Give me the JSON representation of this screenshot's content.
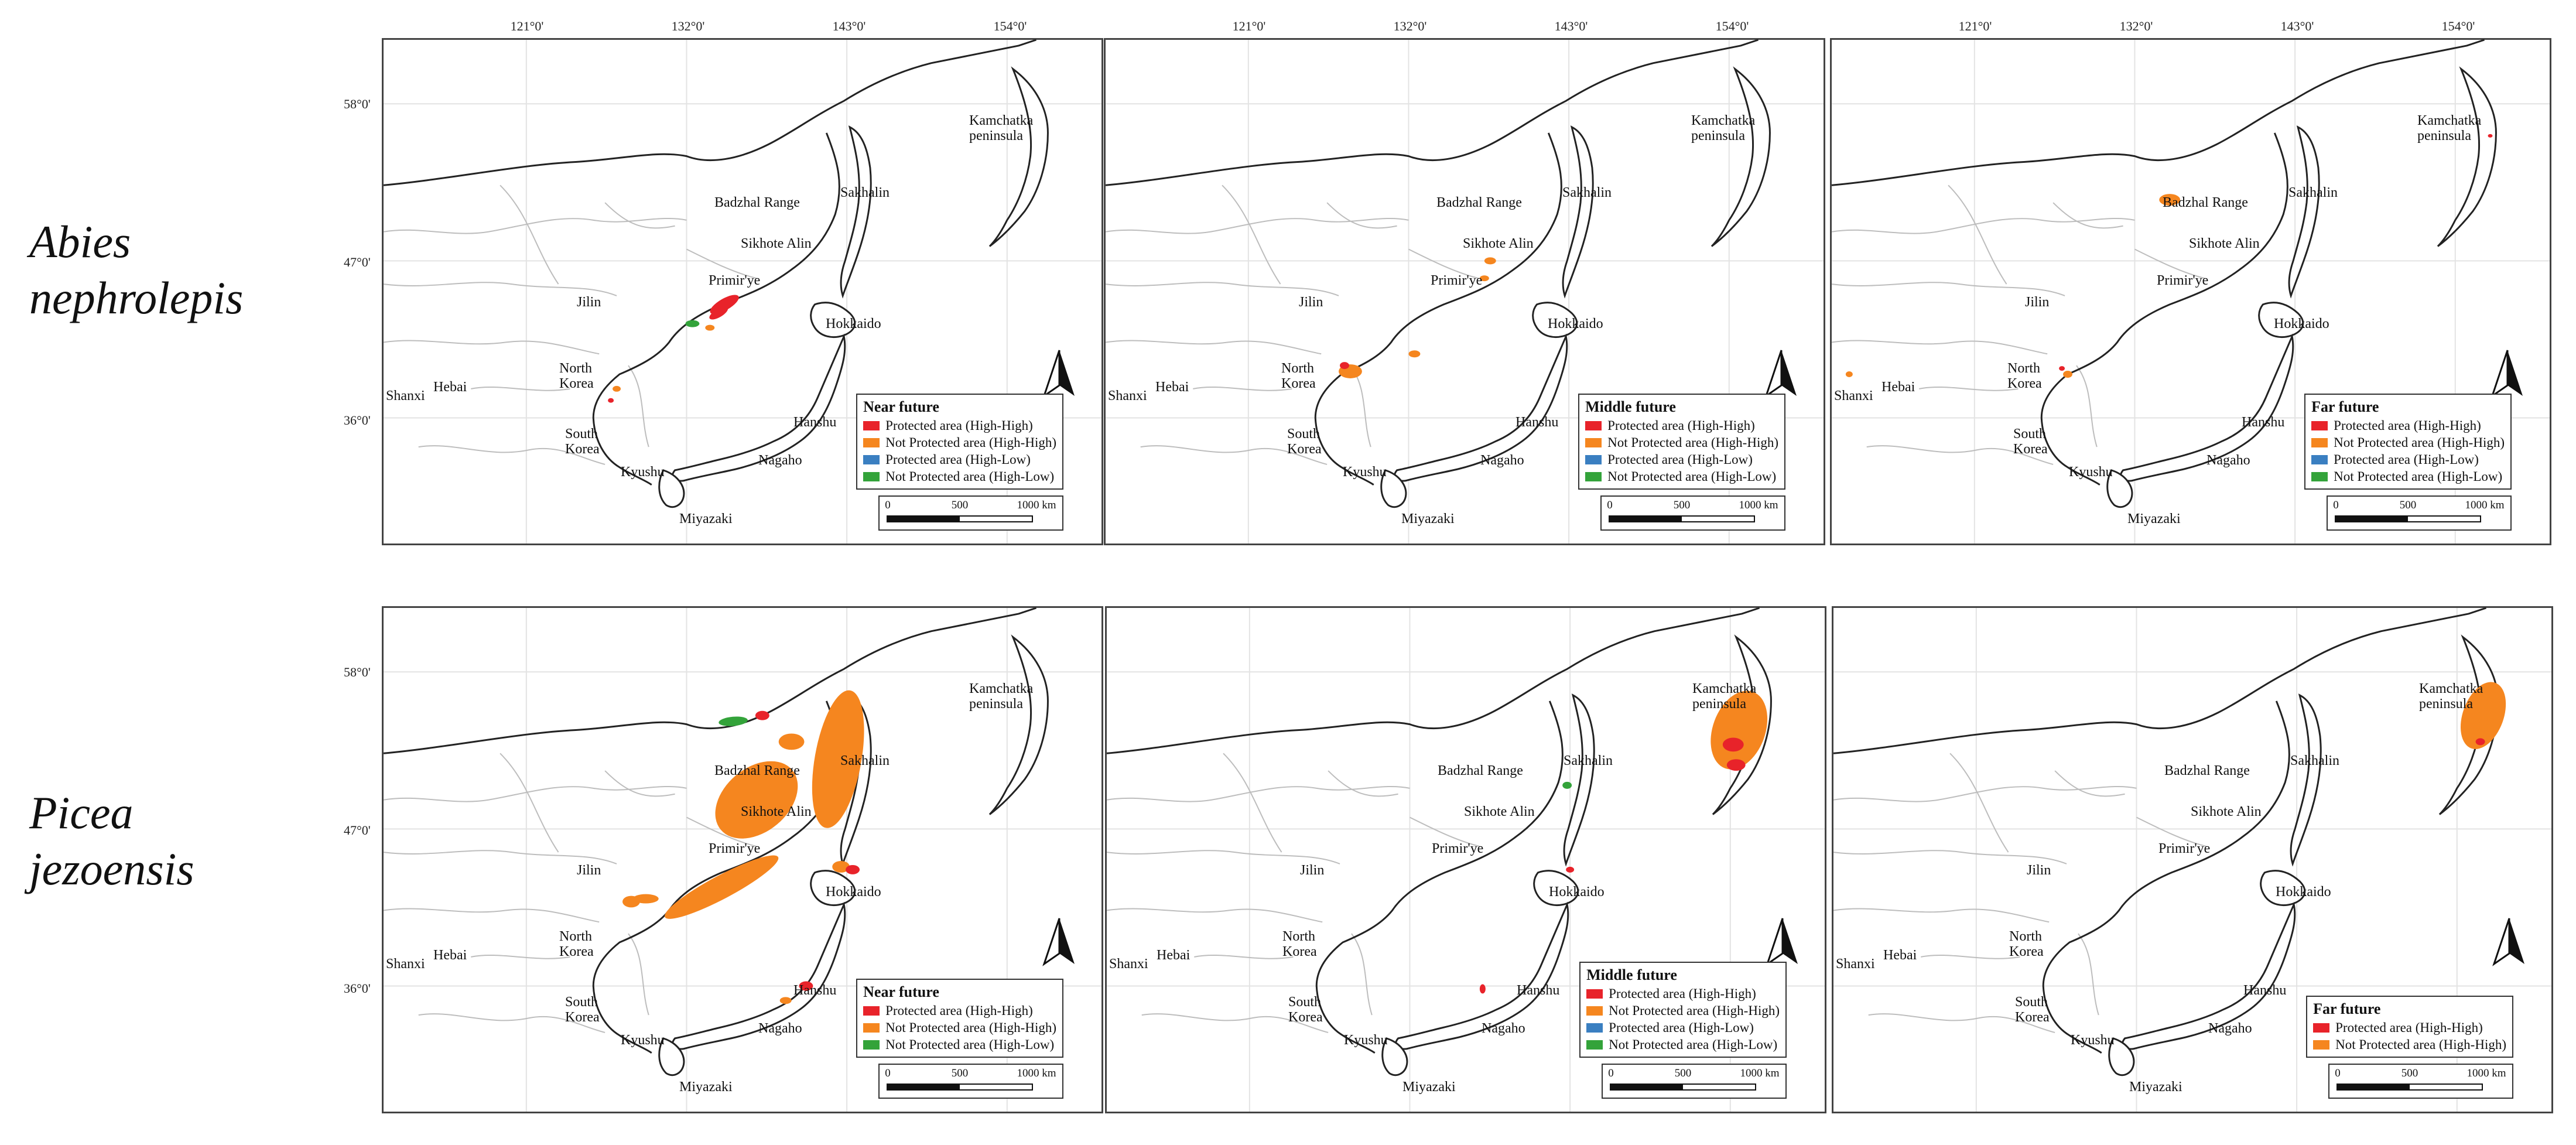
{
  "species": [
    {
      "line1": "Abies",
      "line2": "nephrolepis"
    },
    {
      "line1": "Picea",
      "line2": "jezoensis"
    }
  ],
  "lon_ticks": [
    "121°0'",
    "132°0'",
    "143°0'",
    "154°0'"
  ],
  "lat_ticks": [
    "58°0'",
    "47°0'",
    "36°0'"
  ],
  "place_names": {
    "kamchatka": "Kamchatka\npeninsula",
    "sakhalin": "Sakhalin",
    "badzhal": "Badzhal Range",
    "sikhote": "Sikhote Alin",
    "primirye": "Primir'ye",
    "jilin": "Jilin",
    "hokkaido": "Hokkaido",
    "north_korea": "North\nKorea",
    "south_korea": "South\nKorea",
    "shanxi": "Shanxi",
    "hebai": "Hebai",
    "hanshu": "Hanshu",
    "kyushu": "Kyushu",
    "nagaho": "Nagaho",
    "miyazaki": "Miyazaki"
  },
  "legend_colors": {
    "protected_high_high": "#e8232a",
    "not_protected_high_high": "#f5861f",
    "protected_high_low": "#3a7fc1",
    "not_protected_high_low": "#33a33a"
  },
  "scale": {
    "t0": "0",
    "t1": "500",
    "t2": "1000 km"
  },
  "panels": [
    {
      "legend_title": "Near future",
      "legend_items": [
        {
          "label": "Protected area (High-High)",
          "color_key": "protected_high_high"
        },
        {
          "label": "Not Protected area (High-High)",
          "color_key": "not_protected_high_high"
        },
        {
          "label": "Protected area (High-Low)",
          "color_key": "protected_high_low"
        },
        {
          "label": "Not Protected area (High-Low)",
          "color_key": "not_protected_high_low"
        }
      ]
    },
    {
      "legend_title": "Middle future",
      "legend_items": [
        {
          "label": "Protected area (High-High)",
          "color_key": "protected_high_high"
        },
        {
          "label": "Not Protected area (High-High)",
          "color_key": "not_protected_high_high"
        },
        {
          "label": "Protected area (High-Low)",
          "color_key": "protected_high_low"
        },
        {
          "label": "Not Protected area (High-Low)",
          "color_key": "not_protected_high_low"
        }
      ]
    },
    {
      "legend_title": "Far future",
      "legend_items": [
        {
          "label": "Protected area (High-High)",
          "color_key": "protected_high_high"
        },
        {
          "label": "Not Protected area (High-High)",
          "color_key": "not_protected_high_high"
        },
        {
          "label": "Protected area (High-Low)",
          "color_key": "protected_high_low"
        },
        {
          "label": "Not Protected area (High-Low)",
          "color_key": "not_protected_high_low"
        }
      ]
    },
    {
      "legend_title": "Near future",
      "legend_items": [
        {
          "label": "Protected area (High-High)",
          "color_key": "protected_high_high"
        },
        {
          "label": "Not Protected area (High-High)",
          "color_key": "not_protected_high_high"
        },
        {
          "label": "Not Protected area (High-Low)",
          "color_key": "not_protected_high_low"
        }
      ]
    },
    {
      "legend_title": "Middle future",
      "legend_items": [
        {
          "label": "Protected area (High-High)",
          "color_key": "protected_high_high"
        },
        {
          "label": "Not Protected area (High-High)",
          "color_key": "not_protected_high_high"
        },
        {
          "label": "Protected area (High-Low)",
          "color_key": "protected_high_low"
        },
        {
          "label": "Not Protected area (High-Low)",
          "color_key": "not_protected_high_low"
        }
      ]
    },
    {
      "legend_title": "Far future",
      "legend_items": [
        {
          "label": "Protected area (High-High)",
          "color_key": "protected_high_high"
        },
        {
          "label": "Not Protected area (High-High)",
          "color_key": "not_protected_high_high"
        }
      ]
    }
  ]
}
